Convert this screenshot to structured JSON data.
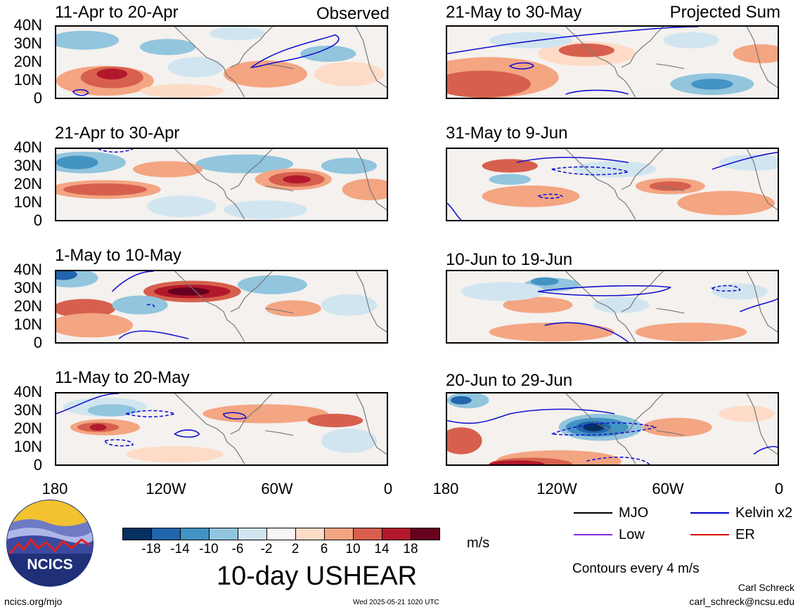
{
  "panels": [
    {
      "title": "11-Apr to 20-Apr",
      "corner": "Observed"
    },
    {
      "title": "21-Apr to 30-Apr",
      "corner": ""
    },
    {
      "title": "1-May to 10-May",
      "corner": ""
    },
    {
      "title": "11-May to 20-May",
      "corner": ""
    },
    {
      "title": "21-May to 30-May",
      "corner": "Projected Sum"
    },
    {
      "title": "31-May to 9-Jun",
      "corner": ""
    },
    {
      "title": "10-Jun to 19-Jun",
      "corner": ""
    },
    {
      "title": "20-Jun to 29-Jun",
      "corner": ""
    }
  ],
  "lat_labels": [
    "40N",
    "30N",
    "20N",
    "10N",
    "0"
  ],
  "lon_labels": [
    "180",
    "120W",
    "60W",
    "0"
  ],
  "colorbar": {
    "labels": [
      "-18",
      "-14",
      "-10",
      "-6",
      "-2",
      "2",
      "6",
      "10",
      "14",
      "18"
    ],
    "colors": [
      "#053061",
      "#2166ac",
      "#4393c3",
      "#92c5de",
      "#d1e5f0",
      "#f7f7f7",
      "#fddbc7",
      "#f4a582",
      "#d6604d",
      "#b2182b",
      "#67001f"
    ],
    "units": "m/s"
  },
  "main_title": "10-day USHEAR",
  "legend": {
    "mjo": "MJO",
    "kelvin": "Kelvin x2",
    "low": "Low",
    "er": "ER",
    "contours_note": "Contours every 4 m/s",
    "colors": {
      "mjo": "#000000",
      "kelvin": "#0000cc",
      "low": "#8a2be2",
      "er": "#dd0000"
    }
  },
  "footer": {
    "url": "ncics.org/mjo",
    "timestamp": "Wed 2025-05-21 1020 UTC",
    "author": "Carl Schreck",
    "email": "carl_schreck@ncsu.edu"
  },
  "logo": {
    "text": "NCICS"
  }
}
